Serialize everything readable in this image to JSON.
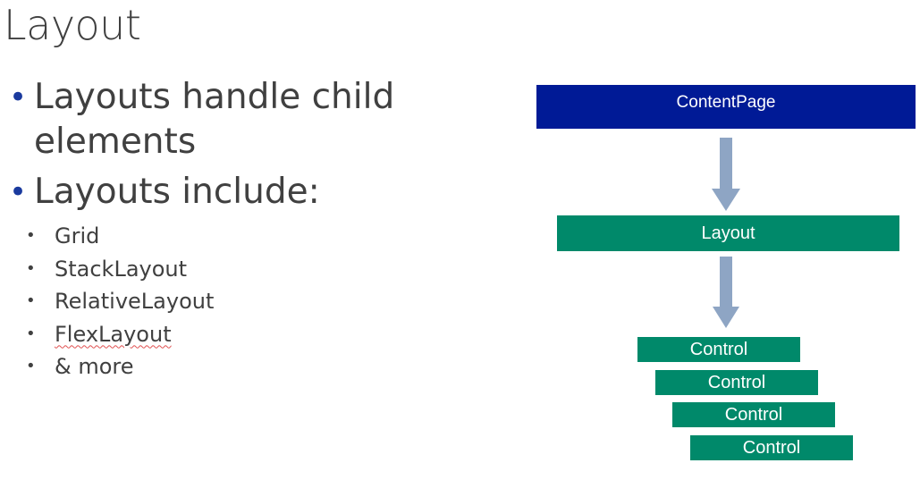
{
  "slide": {
    "title": "Layout",
    "bullets": [
      "Layouts handle child elements",
      "Layouts include:"
    ],
    "sub_bullets": [
      "Grid",
      "StackLayout",
      "RelativeLayout",
      "FlexLayout",
      "& more"
    ]
  },
  "diagram": {
    "content_page": "ContentPage",
    "layout": "Layout",
    "controls": [
      "Control",
      "Control",
      "Control",
      "Control"
    ],
    "colors": {
      "content_page": "#001a96",
      "green": "#00896a",
      "arrow": "#8ea5c4"
    }
  }
}
